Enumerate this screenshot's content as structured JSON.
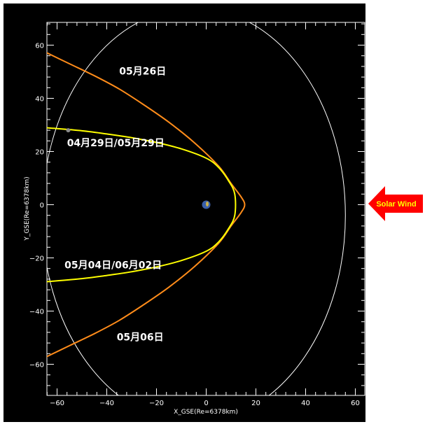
{
  "chart_data": {
    "type": "line",
    "xlabel": "X_GSE(Re=6378km)",
    "ylabel": "Y_GSE(Re=6378km)",
    "xlim": [
      -65,
      65
    ],
    "ylim": [
      -70,
      70
    ],
    "x_ticks": [
      -60,
      -40,
      -20,
      0,
      20,
      40,
      60
    ],
    "y_ticks": [
      60,
      40,
      20,
      0,
      -20,
      -40,
      -60
    ],
    "x_tick_labels": [
      "−60",
      "−40",
      "−20",
      "0",
      "20",
      "40",
      "60"
    ],
    "y_tick_labels": [
      "60",
      "40",
      "20",
      "0",
      "−20",
      "−40",
      "−60"
    ],
    "grid": false,
    "series": [
      {
        "color": "#ff8c1a",
        "kind": "bow-shock",
        "x": [
          -65,
          -55,
          -45,
          -35,
          -25,
          -15,
          -5,
          5,
          10,
          14,
          15.5,
          14,
          10,
          5,
          -5,
          -15,
          -25,
          -35,
          -45,
          -55,
          -65
        ],
        "y": [
          57.5,
          53,
          48.5,
          43.5,
          37.5,
          31,
          23.5,
          14.5,
          8,
          3,
          0,
          -3,
          -8,
          -14.5,
          -23.5,
          -31,
          -37.5,
          -43.5,
          -48.5,
          -53,
          -57.5
        ]
      },
      {
        "color": "#ffff00",
        "kind": "magnetopause",
        "x": [
          -65,
          -50,
          -40,
          -30,
          -20,
          -10,
          0,
          5,
          9,
          11.5,
          11.5,
          9,
          5,
          0,
          -10,
          -20,
          -30,
          -40,
          -50,
          -65
        ],
        "y": [
          29,
          27.8,
          26.6,
          25.2,
          23.4,
          21,
          17.5,
          14,
          9,
          4,
          -4,
          -9,
          -14,
          -17.5,
          -21,
          -23.4,
          -25.2,
          -26.6,
          -27.8,
          -29
        ]
      }
    ],
    "orbit": {
      "color": "#ffffff",
      "center": [
        -5,
        -4
      ],
      "radius_x": 61,
      "radius_y": 78
    },
    "earth": {
      "x": 0,
      "y": 0
    },
    "spacecraft": {
      "x": -55.5,
      "y": 28
    },
    "annotations": [
      {
        "text": "05月26日",
        "x": -35,
        "y": 49
      },
      {
        "text": "04月29日/05月29日",
        "x": -56,
        "y": 22
      },
      {
        "text": "05月04日/06月02日",
        "x": -57,
        "y": -24
      },
      {
        "text": "05月06日",
        "x": -36,
        "y": -51
      }
    ],
    "side_label": {
      "text": "Solar Wind",
      "text_color": "#ffff00",
      "arrow_color": "#ff0000"
    }
  }
}
